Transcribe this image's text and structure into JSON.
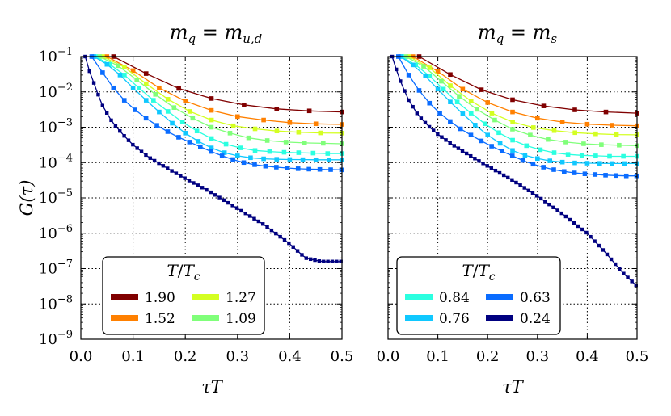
{
  "chart_data": [
    {
      "type": "line",
      "title": "m_q = m_{u,d}",
      "title_main": "m",
      "title_main_sub": "q",
      "title_rhs": "m",
      "title_rhs_sub": "u,d",
      "xlabel": "τT",
      "ylabel": "G(τ)",
      "xlim": [
        0.0,
        0.5
      ],
      "ylim_log10": [
        -9,
        -1
      ],
      "yscale": "log",
      "grid": true,
      "x_ticks": [
        "0.0",
        "0.1",
        "0.2",
        "0.3",
        "0.4",
        "0.5"
      ],
      "y_ticks": [
        {
          "base": "10",
          "exp": "−1"
        },
        {
          "base": "10",
          "exp": "−2"
        },
        {
          "base": "10",
          "exp": "−3"
        },
        {
          "base": "10",
          "exp": "−4"
        },
        {
          "base": "10",
          "exp": "−5"
        },
        {
          "base": "10",
          "exp": "−6"
        },
        {
          "base": "10",
          "exp": "−7"
        },
        {
          "base": "10",
          "exp": "−8"
        },
        {
          "base": "10",
          "exp": "−9"
        }
      ],
      "legend": {
        "title": "T/T_c",
        "title_T": "T",
        "title_Tc": "T",
        "title_sub": "c",
        "placement": "lower-left",
        "entries": [
          {
            "label": "1.90",
            "color": "#800000"
          },
          {
            "label": "1.27",
            "color": "#d4ff22"
          },
          {
            "label": "1.52",
            "color": "#ff8000"
          },
          {
            "label": "1.09",
            "color": "#80ff7a"
          }
        ]
      },
      "series": [
        {
          "name": "1.90",
          "color": "#800000",
          "x_start": 0.0625,
          "step": 0.0625,
          "y": [
            0.1,
            0.033,
            0.0125,
            0.0065,
            0.0043,
            0.0033,
            0.0029,
            0.0027
          ]
        },
        {
          "name": "1.52",
          "color": "#ff8000",
          "x_start": 0.05,
          "step": 0.05,
          "y": [
            0.1,
            0.04,
            0.013,
            0.0055,
            0.003,
            0.002,
            0.0016,
            0.00135,
            0.00125,
            0.0012
          ]
        },
        {
          "name": "1.27",
          "color": "#d4ff22",
          "x_start": 0.0417,
          "step": 0.0417,
          "y": [
            0.1,
            0.05,
            0.017,
            0.0062,
            0.0028,
            0.0016,
            0.0011,
            0.0009,
            0.00078,
            0.00072,
            0.00069,
            0.00068
          ]
        },
        {
          "name": "1.09",
          "color": "#80ff7a",
          "x_start": 0.0357,
          "step": 0.0357,
          "y": [
            0.1,
            0.055,
            0.022,
            0.0085,
            0.0036,
            0.0018,
            0.001,
            0.00068,
            0.0005,
            0.00042,
            0.00038,
            0.00036,
            0.00035,
            0.00034
          ]
        },
        {
          "name": "0.84",
          "color": "#2bffe0",
          "x_start": 0.0278,
          "step": 0.0278,
          "y": [
            0.1,
            0.06,
            0.03,
            0.013,
            0.0058,
            0.0028,
            0.0014,
            0.00078,
            0.00048,
            0.00033,
            0.00026,
            0.00022,
            0.000205,
            0.000195,
            0.00019,
            0.000185,
            0.00018,
            0.00018
          ]
        },
        {
          "name": "0.76",
          "color": "#10c8ff",
          "x_start": 0.025,
          "step": 0.025,
          "y": [
            0.1,
            0.06,
            0.03,
            0.013,
            0.0058,
            0.0027,
            0.0013,
            0.00068,
            0.0004,
            0.00026,
            0.00019,
            0.000155,
            0.000137,
            0.000128,
            0.000124,
            0.000122,
            0.000121,
            0.00012,
            0.00012,
            0.00012
          ]
        },
        {
          "name": "0.63",
          "color": "#0a6cff",
          "x_start": 0.0208,
          "step": 0.0208,
          "y": [
            0.1,
            0.035,
            0.013,
            0.0058,
            0.0031,
            0.0018,
            0.00113,
            0.00075,
            0.00052,
            0.00038,
            0.00028,
            0.000205,
            0.000155,
            0.000122,
            0.0001,
            8.7e-05,
            7.9e-05,
            7.4e-05,
            7e-05,
            6.7e-05,
            6.5e-05,
            6.4e-05,
            6.3e-05,
            6.2e-05
          ]
        },
        {
          "name": "0.24",
          "color": "#000080",
          "x_start": 0.0083,
          "step": 0.0083,
          "y_log10_start": -1.0,
          "log_decay": 0.00014,
          "knots_log10": [
            [
              0.0083,
              -1.0
            ],
            [
              0.015,
              -1.35
            ],
            [
              0.025,
              -1.75
            ],
            [
              0.04,
              -2.35
            ],
            [
              0.06,
              -2.85
            ],
            [
              0.08,
              -3.2
            ],
            [
              0.1,
              -3.5
            ],
            [
              0.13,
              -3.85
            ],
            [
              0.17,
              -4.2
            ],
            [
              0.2,
              -4.45
            ],
            [
              0.25,
              -4.85
            ],
            [
              0.3,
              -5.3
            ],
            [
              0.35,
              -5.75
            ],
            [
              0.4,
              -6.3
            ],
            [
              0.43,
              -6.7
            ],
            [
              0.46,
              -6.8
            ],
            [
              0.5,
              -6.8
            ]
          ]
        }
      ]
    },
    {
      "type": "line",
      "title": "m_q = m_s",
      "title_main": "m",
      "title_main_sub": "q",
      "title_rhs": "m",
      "title_rhs_sub": "s",
      "xlabel": "τT",
      "xlim": [
        0.0,
        0.5
      ],
      "ylim_log10": [
        -9,
        -1
      ],
      "yscale": "log",
      "grid": true,
      "x_ticks": [
        "0.0",
        "0.1",
        "0.2",
        "0.3",
        "0.4",
        "0.5"
      ],
      "legend": {
        "title": "T/T_c",
        "title_T": "T",
        "title_Tc": "T",
        "title_sub": "c",
        "placement": "lower-left",
        "entries": [
          {
            "label": "0.84",
            "color": "#2bffe0"
          },
          {
            "label": "0.63",
            "color": "#0a6cff"
          },
          {
            "label": "0.76",
            "color": "#10c8ff"
          },
          {
            "label": "0.24",
            "color": "#000080"
          }
        ]
      },
      "series": [
        {
          "name": "1.90",
          "color": "#800000",
          "x_start": 0.0625,
          "step": 0.0625,
          "y": [
            0.1,
            0.031,
            0.0115,
            0.006,
            0.004,
            0.0031,
            0.0027,
            0.0025
          ]
        },
        {
          "name": "1.52",
          "color": "#ff8000",
          "x_start": 0.05,
          "step": 0.05,
          "y": [
            0.1,
            0.038,
            0.012,
            0.005,
            0.0027,
            0.0018,
            0.0014,
            0.00122,
            0.00114,
            0.0011
          ]
        },
        {
          "name": "1.27",
          "color": "#d4ff22",
          "x_start": 0.0417,
          "step": 0.0417,
          "y": [
            0.1,
            0.048,
            0.015,
            0.0055,
            0.0025,
            0.0014,
            0.00098,
            0.0008,
            0.0007,
            0.00065,
            0.00062,
            0.00061
          ]
        },
        {
          "name": "1.09",
          "color": "#80ff7a",
          "x_start": 0.0357,
          "step": 0.0357,
          "y": [
            0.1,
            0.053,
            0.02,
            0.0075,
            0.0032,
            0.0016,
            0.00088,
            0.0006,
            0.00045,
            0.00038,
            0.00034,
            0.00032,
            0.00031,
            0.0003
          ]
        },
        {
          "name": "0.84",
          "color": "#2bffe0",
          "x_start": 0.0278,
          "step": 0.0278,
          "y": [
            0.1,
            0.058,
            0.028,
            0.012,
            0.0052,
            0.0025,
            0.00125,
            0.0007,
            0.00043,
            0.0003,
            0.00023,
            0.00019,
            0.00017,
            0.00016,
            0.000155,
            0.00015,
            0.00015,
            0.00015
          ]
        },
        {
          "name": "0.76",
          "color": "#10c8ff",
          "x_start": 0.025,
          "step": 0.025,
          "y": [
            0.1,
            0.058,
            0.028,
            0.012,
            0.0052,
            0.0024,
            0.00115,
            0.0006,
            0.00035,
            0.00022,
            0.00016,
            0.00013,
            0.000112,
            0.000103,
            9.8e-05,
            9.6e-05,
            9.5e-05,
            9.4e-05,
            9.4e-05,
            9.4e-05
          ]
        },
        {
          "name": "0.63",
          "color": "#0a6cff",
          "x_start": 0.0208,
          "step": 0.0208,
          "y": [
            0.1,
            0.03,
            0.011,
            0.0048,
            0.0025,
            0.00145,
            0.0009,
            0.0006,
            0.00041,
            0.00029,
            0.00021,
            0.000155,
            0.000115,
            9e-05,
            7.4e-05,
            6.3e-05,
            5.6e-05,
            5.1e-05,
            4.8e-05,
            4.6e-05,
            4.4e-05,
            4.3e-05,
            4.2e-05,
            4.2e-05
          ]
        },
        {
          "name": "0.24",
          "color": "#000080",
          "x_start": 0.0083,
          "step": 0.0083,
          "knots_log10": [
            [
              0.0083,
              -1.0
            ],
            [
              0.015,
              -1.3
            ],
            [
              0.025,
              -1.7
            ],
            [
              0.04,
              -2.2
            ],
            [
              0.06,
              -2.65
            ],
            [
              0.08,
              -2.95
            ],
            [
              0.1,
              -3.2
            ],
            [
              0.13,
              -3.5
            ],
            [
              0.17,
              -3.85
            ],
            [
              0.2,
              -4.1
            ],
            [
              0.25,
              -4.5
            ],
            [
              0.3,
              -4.95
            ],
            [
              0.35,
              -5.45
            ],
            [
              0.4,
              -6.0
            ],
            [
              0.44,
              -6.6
            ],
            [
              0.47,
              -7.1
            ],
            [
              0.5,
              -7.5
            ]
          ]
        }
      ]
    }
  ]
}
